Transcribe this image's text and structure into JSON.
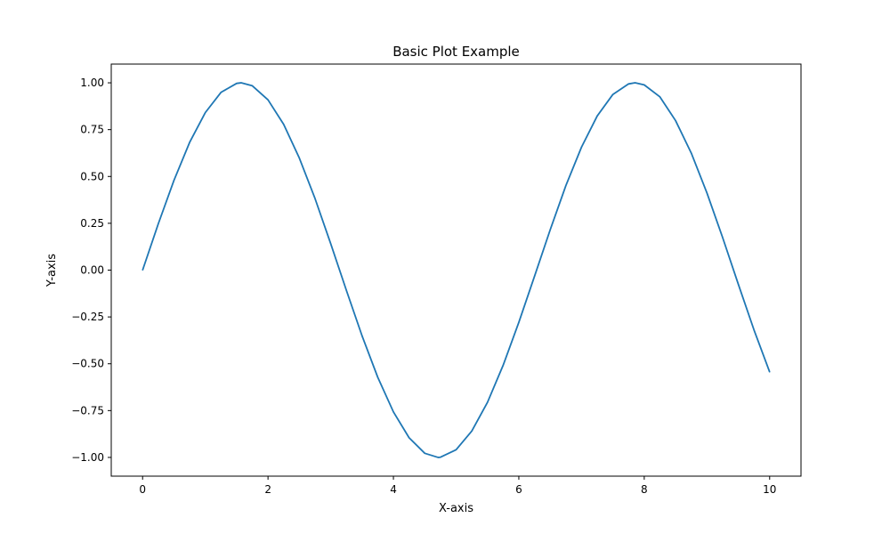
{
  "chart_data": {
    "type": "line",
    "title": "Basic Plot Example",
    "xlabel": "X-axis",
    "ylabel": "Y-axis",
    "xlim": [
      -0.5,
      10.5
    ],
    "ylim": [
      -1.1,
      1.1
    ],
    "grid": false,
    "legend": "none",
    "xticks": [
      0,
      2,
      4,
      6,
      8,
      10
    ],
    "xtick_labels": [
      "0",
      "2",
      "4",
      "6",
      "8",
      "10"
    ],
    "yticks": [
      1.0,
      0.75,
      0.5,
      0.25,
      0.0,
      -0.25,
      -0.5,
      -0.75,
      -1.0
    ],
    "ytick_labels": [
      "1.00",
      "0.75",
      "0.50",
      "0.25",
      "0.00",
      "−0.25",
      "−0.50",
      "−0.75",
      "−1.00"
    ],
    "series": [
      {
        "color": "#1f77b4",
        "x": [
          0,
          0.25,
          0.5,
          0.75,
          1,
          1.25,
          1.5,
          1.571,
          1.75,
          2,
          2.25,
          2.5,
          2.75,
          3,
          3.25,
          3.5,
          3.75,
          4,
          4.25,
          4.5,
          4.712,
          4.75,
          5,
          5.25,
          5.5,
          5.75,
          6,
          6.25,
          6.5,
          6.75,
          7,
          7.25,
          7.5,
          7.75,
          7.854,
          8,
          8.25,
          8.5,
          8.75,
          9,
          9.25,
          9.5,
          9.75,
          10
        ],
        "y": [
          0.0,
          0.247,
          0.479,
          0.682,
          0.841,
          0.949,
          0.997,
          1.0,
          0.984,
          0.909,
          0.778,
          0.598,
          0.382,
          0.141,
          -0.108,
          -0.351,
          -0.572,
          -0.757,
          -0.895,
          -0.978,
          -1.0,
          -0.999,
          -0.959,
          -0.859,
          -0.706,
          -0.508,
          -0.279,
          -0.033,
          0.215,
          0.451,
          0.657,
          0.823,
          0.938,
          0.994,
          1.0,
          0.989,
          0.925,
          0.798,
          0.625,
          0.412,
          0.174,
          -0.075,
          -0.319,
          -0.544
        ]
      }
    ]
  }
}
